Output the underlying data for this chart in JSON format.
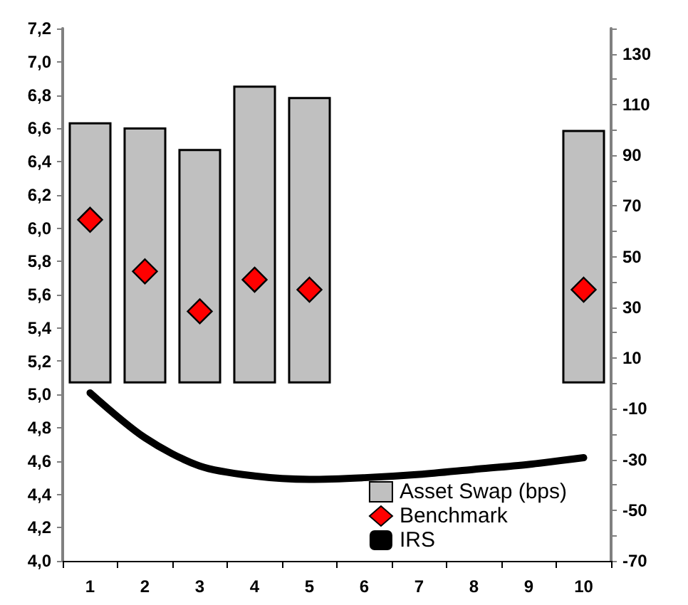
{
  "chart_data": {
    "type": "bar",
    "categories": [
      "1",
      "2",
      "3",
      "4",
      "5",
      "6",
      "7",
      "8",
      "9",
      "10"
    ],
    "series": [
      {
        "name": "Asset Swap (bps)",
        "axis": "y2",
        "color": "#c0c0c0",
        "values": [
          103,
          101,
          92.5,
          117.5,
          113,
          null,
          null,
          null,
          null,
          100
        ]
      },
      {
        "name": "Benchmark",
        "type": "scatter",
        "marker": "diamond",
        "color": "#ff0000",
        "values": [
          6.05,
          5.74,
          5.5,
          5.69,
          5.63,
          null,
          null,
          null,
          null,
          5.63
        ]
      },
      {
        "name": "IRS",
        "type": "line",
        "marker": "none",
        "color": "#000000",
        "values": [
          5.01,
          4.74,
          4.57,
          4.51,
          4.49,
          4.5,
          4.52,
          4.55,
          4.58,
          4.62
        ]
      }
    ],
    "ylim": [
      4.0,
      7.2
    ],
    "yticks": [
      {
        "value": 4.0,
        "label": "4,0"
      },
      {
        "value": 4.2,
        "label": "4,2"
      },
      {
        "value": 4.4,
        "label": "4,4"
      },
      {
        "value": 4.6,
        "label": "4,6"
      },
      {
        "value": 4.8,
        "label": "4,8"
      },
      {
        "value": 5.0,
        "label": "5,0"
      },
      {
        "value": 5.2,
        "label": "5,2"
      },
      {
        "value": 5.4,
        "label": "5,4"
      },
      {
        "value": 5.6,
        "label": "5,6"
      },
      {
        "value": 5.8,
        "label": "5,8"
      },
      {
        "value": 6.0,
        "label": "6,0"
      },
      {
        "value": 6.2,
        "label": "6,2"
      },
      {
        "value": 6.4,
        "label": "6,4"
      },
      {
        "value": 6.6,
        "label": "6,6"
      },
      {
        "value": 6.8,
        "label": "6,8"
      },
      {
        "value": 7.0,
        "label": "7,0"
      },
      {
        "value": 7.2,
        "label": "7,2"
      }
    ],
    "y2lim": [
      -70,
      140
    ],
    "y2ticks": [
      -70,
      {
        "value": -60,
        "label": null
      },
      -50,
      {
        "value": -40,
        "label": null
      },
      -30,
      {
        "value": -20,
        "label": null
      },
      -10,
      {
        "value": 0,
        "label": null
      },
      10,
      {
        "value": 20,
        "label": null
      },
      30,
      {
        "value": 40,
        "label": null
      },
      50,
      {
        "value": 60,
        "label": null
      },
      70,
      {
        "value": 80,
        "label": null
      },
      90,
      {
        "value": 100,
        "label": null
      },
      110,
      {
        "value": 120,
        "label": null
      },
      130,
      {
        "value": 140,
        "label": null
      }
    ],
    "grid": false,
    "legend": "bottom right"
  }
}
